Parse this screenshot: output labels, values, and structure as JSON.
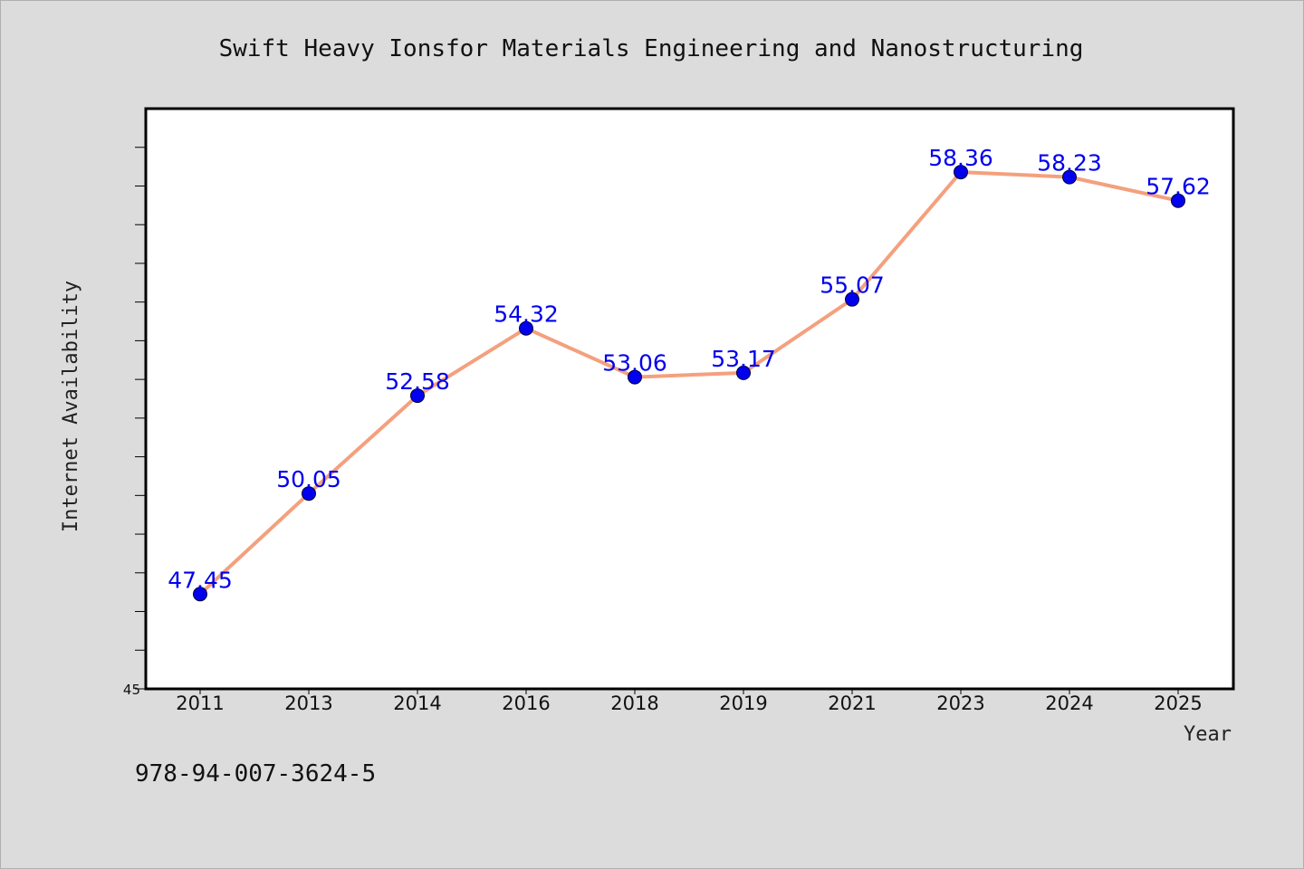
{
  "chart_data": {
    "type": "line",
    "title": "Swift Heavy Ionsfor Materials Engineering and Nanostructuring",
    "xlabel": "Year",
    "ylabel": "Internet Availability",
    "categories": [
      "2011",
      "2013",
      "2014",
      "2016",
      "2018",
      "2019",
      "2021",
      "2023",
      "2024",
      "2025"
    ],
    "series": [
      {
        "values": [
          47.45,
          50.05,
          52.58,
          54.32,
          53.06,
          53.17,
          55.07,
          58.36,
          58.23,
          57.62
        ]
      }
    ],
    "data_labels": [
      "47.45",
      "50.05",
      "52.58",
      "54.32",
      "53.06",
      "53.17",
      "55.07",
      "58.36",
      "58.23",
      "57.62"
    ],
    "ylim": [
      45,
      60
    ],
    "yticks": [
      45,
      46,
      47,
      48,
      49,
      50,
      51,
      52,
      53,
      54,
      55,
      56,
      57,
      58,
      59
    ],
    "ytick_labels_shown": [
      "45"
    ],
    "grid": false,
    "legend": "none",
    "colors": {
      "line": "#f4a07e",
      "marker": "#0000ee",
      "label": "#0000ee",
      "background": "#dcdcdc",
      "plot_background": "#ffffff"
    }
  },
  "footer": {
    "isbn": "978-94-007-3624-5"
  }
}
